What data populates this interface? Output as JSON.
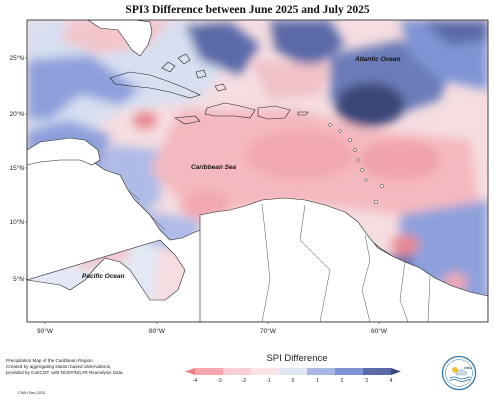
{
  "title": "SPI3 Difference between June 2025 and July 2025",
  "labels": {
    "atlantic": "Atlantic Ocean",
    "caribbean": "Caribbean Sea",
    "pacific": "Pacific Ocean"
  },
  "lat_ticks": [
    "25°N",
    "20°N",
    "15°N",
    "10°N",
    "5°N"
  ],
  "lon_ticks": [
    "90°W",
    "80°W",
    "70°W",
    "60°W"
  ],
  "legend": {
    "title": "SPI Difference",
    "ticks": [
      "-4",
      "-3",
      "-2",
      "-1",
      "0",
      "1",
      "2",
      "3",
      "4"
    ],
    "colors": [
      "#ee7f86",
      "#f4a8ae",
      "#f7cfd4",
      "#fbe5e7",
      "#dfe6f4",
      "#a8b7e6",
      "#7f94d4",
      "#5a6aa8",
      "#3a4778"
    ]
  },
  "footer": {
    "line1": "Precipitation Map of the Caribbean Region.",
    "line2": "Created by aggregating station based observations,",
    "line3": "provided by CariCOF, with NCEP/NCAR Reanalysis Data.",
    "credit": "CIMH Sep-2025"
  },
  "logo": {
    "text": "CIMH"
  }
}
